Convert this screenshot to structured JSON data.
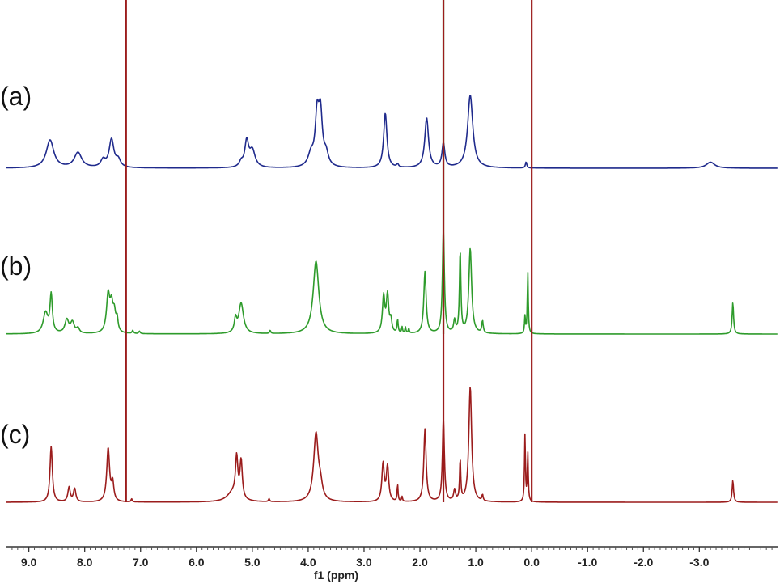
{
  "chart_data": {
    "type": "line",
    "title": "",
    "xlabel": "f1 (ppm)",
    "ylabel": "",
    "xlim": [
      9.4,
      -4.4
    ],
    "x_reversed": true,
    "grid": false,
    "x_ticks": [
      9.0,
      8.0,
      7.0,
      6.0,
      5.0,
      4.0,
      3.0,
      2.0,
      1.0,
      0.0,
      -1.0,
      -2.0,
      -3.0
    ],
    "x_tick_labels": [
      "9.0",
      "8.0",
      "7.0",
      "6.0",
      "5.0",
      "4.0",
      "3.0",
      "2.0",
      "1.0",
      "0.0",
      "-1.0",
      "-2.0",
      "-3.0"
    ],
    "series": [
      {
        "name": "(a)",
        "color": "#1f2a8c",
        "peaks": [
          {
            "ppm": 8.62,
            "height": 0.46,
            "width": 0.08
          },
          {
            "ppm": 8.12,
            "height": 0.25,
            "width": 0.08
          },
          {
            "ppm": 7.67,
            "height": 0.12,
            "width": 0.05
          },
          {
            "ppm": 7.52,
            "height": 0.46,
            "width": 0.05
          },
          {
            "ppm": 7.4,
            "height": 0.12,
            "width": 0.05
          },
          {
            "ppm": 5.2,
            "height": 0.08,
            "width": 0.04
          },
          {
            "ppm": 5.1,
            "height": 0.42,
            "width": 0.04
          },
          {
            "ppm": 5.0,
            "height": 0.28,
            "width": 0.06
          },
          {
            "ppm": 3.95,
            "height": 0.2,
            "width": 0.06
          },
          {
            "ppm": 3.84,
            "height": 0.8,
            "width": 0.04
          },
          {
            "ppm": 3.78,
            "height": 0.82,
            "width": 0.04
          },
          {
            "ppm": 3.68,
            "height": 0.2,
            "width": 0.05
          },
          {
            "ppm": 2.62,
            "height": 0.9,
            "width": 0.035
          },
          {
            "ppm": 2.4,
            "height": 0.05,
            "width": 0.02
          },
          {
            "ppm": 1.88,
            "height": 0.82,
            "width": 0.04
          },
          {
            "ppm": 1.58,
            "height": 0.4,
            "width": 0.03
          },
          {
            "ppm": 1.1,
            "height": 1.2,
            "width": 0.055
          },
          {
            "ppm": 0.1,
            "height": 0.1,
            "width": 0.015
          },
          {
            "ppm": -3.2,
            "height": 0.1,
            "width": 0.09
          }
        ]
      },
      {
        "name": "(b)",
        "color": "#2e9b2b",
        "peaks": [
          {
            "ppm": 8.7,
            "height": 0.34,
            "width": 0.05
          },
          {
            "ppm": 8.6,
            "height": 0.62,
            "width": 0.025
          },
          {
            "ppm": 8.32,
            "height": 0.22,
            "width": 0.04
          },
          {
            "ppm": 8.22,
            "height": 0.18,
            "width": 0.04
          },
          {
            "ppm": 8.12,
            "height": 0.08,
            "width": 0.03
          },
          {
            "ppm": 7.58,
            "height": 0.62,
            "width": 0.035
          },
          {
            "ppm": 7.52,
            "height": 0.4,
            "width": 0.03
          },
          {
            "ppm": 7.47,
            "height": 0.3,
            "width": 0.03
          },
          {
            "ppm": 7.42,
            "height": 0.2,
            "width": 0.02
          },
          {
            "ppm": 7.14,
            "height": 0.05,
            "width": 0.015
          },
          {
            "ppm": 7.02,
            "height": 0.04,
            "width": 0.015
          },
          {
            "ppm": 5.3,
            "height": 0.22,
            "width": 0.025
          },
          {
            "ppm": 5.2,
            "height": 0.5,
            "width": 0.05
          },
          {
            "ppm": 4.68,
            "height": 0.05,
            "width": 0.012
          },
          {
            "ppm": 3.86,
            "height": 1.2,
            "width": 0.06
          },
          {
            "ppm": 2.65,
            "height": 0.6,
            "width": 0.025
          },
          {
            "ppm": 2.58,
            "height": 0.62,
            "width": 0.025
          },
          {
            "ppm": 2.52,
            "height": 0.2,
            "width": 0.02
          },
          {
            "ppm": 2.4,
            "height": 0.22,
            "width": 0.012
          },
          {
            "ppm": 2.32,
            "height": 0.1,
            "width": 0.01
          },
          {
            "ppm": 2.26,
            "height": 0.1,
            "width": 0.01
          },
          {
            "ppm": 2.2,
            "height": 0.08,
            "width": 0.01
          },
          {
            "ppm": 1.91,
            "height": 1.02,
            "width": 0.025
          },
          {
            "ppm": 1.58,
            "height": 1.75,
            "width": 0.02
          },
          {
            "ppm": 1.38,
            "height": 0.2,
            "width": 0.02
          },
          {
            "ppm": 1.28,
            "height": 1.35,
            "width": 0.015
          },
          {
            "ppm": 1.1,
            "height": 1.4,
            "width": 0.03
          },
          {
            "ppm": 0.88,
            "height": 0.2,
            "width": 0.015
          },
          {
            "ppm": 0.12,
            "height": 0.28,
            "width": 0.01
          },
          {
            "ppm": 0.07,
            "height": 1.02,
            "width": 0.01
          },
          {
            "ppm": -3.6,
            "height": 0.52,
            "width": 0.015
          }
        ]
      },
      {
        "name": "(c)",
        "color": "#9b1c1c",
        "peaks": [
          {
            "ppm": 8.6,
            "height": 0.92,
            "width": 0.025
          },
          {
            "ppm": 8.28,
            "height": 0.24,
            "width": 0.025
          },
          {
            "ppm": 8.18,
            "height": 0.22,
            "width": 0.025
          },
          {
            "ppm": 7.58,
            "height": 0.88,
            "width": 0.03
          },
          {
            "ppm": 7.5,
            "height": 0.3,
            "width": 0.025
          },
          {
            "ppm": 7.16,
            "height": 0.05,
            "width": 0.012
          },
          {
            "ppm": 5.35,
            "height": 0.15,
            "width": 0.12
          },
          {
            "ppm": 5.28,
            "height": 0.65,
            "width": 0.025
          },
          {
            "ppm": 5.2,
            "height": 0.62,
            "width": 0.025
          },
          {
            "ppm": 4.7,
            "height": 0.05,
            "width": 0.012
          },
          {
            "ppm": 3.86,
            "height": 1.12,
            "width": 0.05
          },
          {
            "ppm": 3.78,
            "height": 0.2,
            "width": 0.04
          },
          {
            "ppm": 2.66,
            "height": 0.62,
            "width": 0.025
          },
          {
            "ppm": 2.58,
            "height": 0.58,
            "width": 0.025
          },
          {
            "ppm": 2.4,
            "height": 0.28,
            "width": 0.01
          },
          {
            "ppm": 2.32,
            "height": 0.08,
            "width": 0.01
          },
          {
            "ppm": 1.91,
            "height": 1.2,
            "width": 0.025
          },
          {
            "ppm": 1.58,
            "height": 1.4,
            "width": 0.02
          },
          {
            "ppm": 1.38,
            "height": 0.18,
            "width": 0.02
          },
          {
            "ppm": 1.28,
            "height": 0.68,
            "width": 0.012
          },
          {
            "ppm": 1.1,
            "height": 1.9,
            "width": 0.03
          },
          {
            "ppm": 0.88,
            "height": 0.1,
            "width": 0.012
          },
          {
            "ppm": 0.12,
            "height": 1.1,
            "width": 0.01
          },
          {
            "ppm": 0.07,
            "height": 0.8,
            "width": 0.01
          },
          {
            "ppm": -3.6,
            "height": 0.36,
            "width": 0.015
          }
        ]
      }
    ],
    "tall_truncated_lines": [
      {
        "ppm": 7.26,
        "color": "#9b1c1c"
      },
      {
        "ppm": 1.58,
        "color": "#2e9b2b"
      },
      {
        "ppm": 1.58,
        "color": "#9b1c1c"
      },
      {
        "ppm": 0.0,
        "color": "#9b1c1c"
      }
    ]
  }
}
